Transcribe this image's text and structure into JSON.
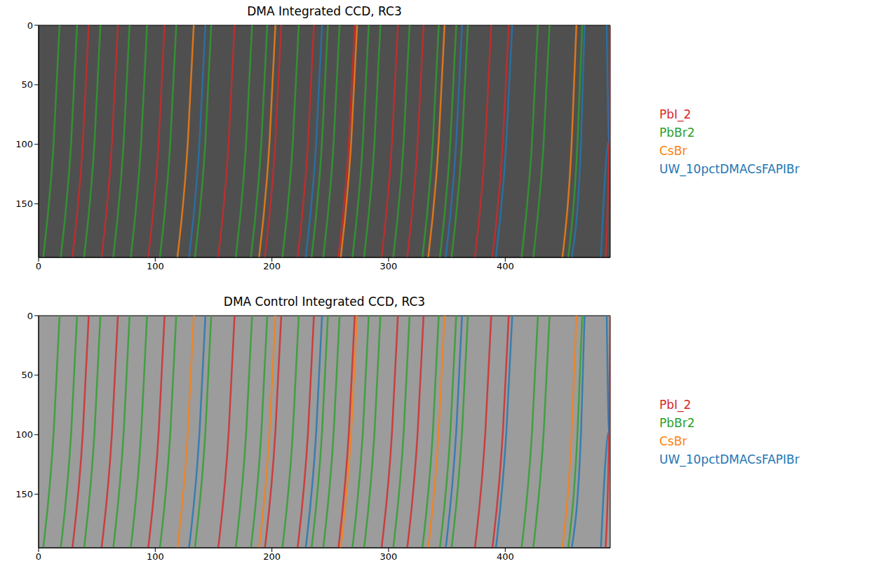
{
  "chart_data": [
    {
      "type": "line",
      "title": "DMA Integrated CCD, RC3",
      "xlim": [
        0,
        490
      ],
      "ylim": [
        0,
        195
      ],
      "xticks": [
        0,
        100,
        200,
        300,
        400
      ],
      "yticks": [
        0,
        50,
        100,
        150
      ],
      "grid": false,
      "legend": "right",
      "y": [
        0,
        97,
        195
      ],
      "series": [
        {
          "name": "PbI_2",
          "color": "#d62728",
          "rings": [
            [
              43,
              38,
              29
            ],
            [
              68,
              63,
              54
            ],
            [
              108,
              103,
              94
            ],
            [
              168,
              163,
              154
            ],
            [
              208,
              203,
              194
            ],
            [
              236,
              231,
              222
            ],
            [
              271,
              266,
              257
            ],
            [
              308,
              303,
              294
            ],
            [
              330,
              325,
              316
            ],
            [
              388,
              383,
              374
            ],
            [
              403,
              398,
              389
            ],
            [
              490,
              489,
              486
            ]
          ]
        },
        {
          "name": "PbBr2",
          "color": "#2ca02c",
          "rings": [
            [
              18,
              13,
              4
            ],
            [
              33,
              28,
              19
            ],
            [
              53,
              48,
              39
            ],
            [
              78,
              73,
              64
            ],
            [
              93,
              88,
              79
            ],
            [
              118,
              113,
              104
            ],
            [
              148,
              143,
              134
            ],
            [
              183,
              178,
              169
            ],
            [
              196,
              191,
              182
            ],
            [
              223,
              218,
              209
            ],
            [
              248,
              243,
              234
            ],
            [
              258,
              253,
              244
            ],
            [
              283,
              278,
              269
            ],
            [
              293,
              288,
              279
            ],
            [
              318,
              313,
              304
            ],
            [
              343,
              338,
              329
            ],
            [
              358,
              353,
              344
            ],
            [
              368,
              363,
              354
            ],
            [
              428,
              423,
              414
            ],
            [
              438,
              433,
              424
            ],
            [
              466,
              462,
              454
            ]
          ]
        },
        {
          "name": "CsBr",
          "color": "#ff7f0e",
          "rings": [
            [
              133,
              128,
              119
            ],
            [
              203,
              198,
              189
            ],
            [
              273,
              268,
              259
            ],
            [
              348,
              343,
              334
            ],
            [
              461,
              457,
              449
            ]
          ]
        },
        {
          "name": "UW_10pctDMACsFAPIBr",
          "color": "#1f77b4",
          "rings": [
            [
              143,
              138,
              129
            ],
            [
              243,
              238,
              229
            ],
            [
              363,
              358,
              349
            ],
            [
              406,
              401,
              392
            ],
            [
              468,
              465,
              457
            ],
            [
              487,
              489,
              482
            ]
          ]
        }
      ]
    },
    {
      "type": "line",
      "title": "DMA Control Integrated CCD, RC3",
      "xlim": [
        0,
        490
      ],
      "ylim": [
        0,
        195
      ],
      "xticks": [
        0,
        100,
        200,
        300,
        400
      ],
      "yticks": [
        0,
        50,
        100,
        150
      ],
      "grid": false,
      "legend": "right",
      "y": [
        0,
        97,
        195
      ],
      "series": [
        {
          "name": "PbI_2",
          "color": "#d62728",
          "rings": [
            [
              43,
              38,
              29
            ],
            [
              68,
              63,
              54
            ],
            [
              108,
              103,
              94
            ],
            [
              168,
              163,
              154
            ],
            [
              208,
              203,
              194
            ],
            [
              236,
              231,
              222
            ],
            [
              271,
              266,
              257
            ],
            [
              308,
              303,
              294
            ],
            [
              330,
              325,
              316
            ],
            [
              388,
              383,
              374
            ],
            [
              403,
              398,
              389
            ],
            [
              490,
              489,
              486
            ]
          ]
        },
        {
          "name": "PbBr2",
          "color": "#2ca02c",
          "rings": [
            [
              18,
              13,
              4
            ],
            [
              33,
              28,
              19
            ],
            [
              53,
              48,
              39
            ],
            [
              78,
              73,
              64
            ],
            [
              93,
              88,
              79
            ],
            [
              118,
              113,
              104
            ],
            [
              148,
              143,
              134
            ],
            [
              183,
              178,
              169
            ],
            [
              196,
              191,
              182
            ],
            [
              223,
              218,
              209
            ],
            [
              248,
              243,
              234
            ],
            [
              258,
              253,
              244
            ],
            [
              283,
              278,
              269
            ],
            [
              293,
              288,
              279
            ],
            [
              318,
              313,
              304
            ],
            [
              343,
              338,
              329
            ],
            [
              358,
              353,
              344
            ],
            [
              368,
              363,
              354
            ],
            [
              428,
              423,
              414
            ],
            [
              438,
              433,
              424
            ],
            [
              466,
              462,
              454
            ]
          ]
        },
        {
          "name": "CsBr",
          "color": "#ff7f0e",
          "rings": [
            [
              133,
              128,
              119
            ],
            [
              203,
              198,
              189
            ],
            [
              273,
              268,
              259
            ],
            [
              348,
              343,
              334
            ],
            [
              461,
              457,
              449
            ]
          ]
        },
        {
          "name": "UW_10pctDMACsFAPIBr",
          "color": "#1f77b4",
          "rings": [
            [
              143,
              138,
              129
            ],
            [
              243,
              238,
              229
            ],
            [
              363,
              358,
              349
            ],
            [
              406,
              401,
              392
            ],
            [
              468,
              465,
              457
            ],
            [
              487,
              489,
              482
            ]
          ]
        }
      ]
    }
  ]
}
